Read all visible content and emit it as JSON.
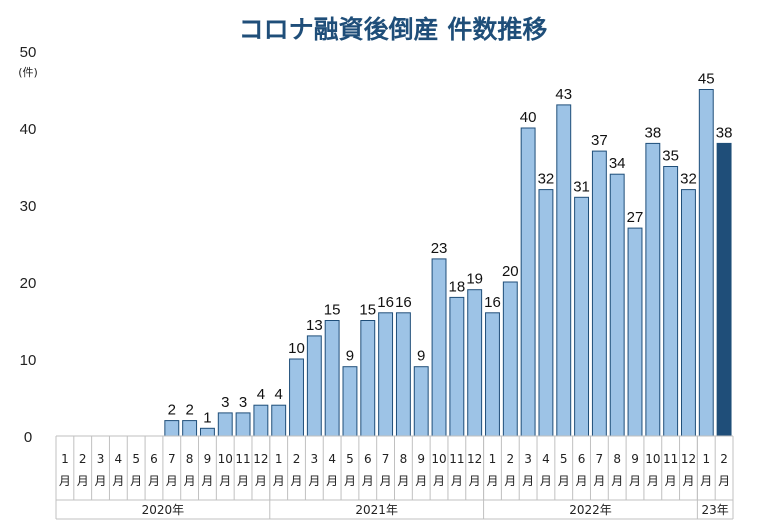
{
  "chart_data": {
    "type": "bar",
    "title": "コロナ融資後倒産 件数推移",
    "ylabel": "(件)",
    "ylim": [
      0,
      50
    ],
    "yticks": [
      0,
      10,
      20,
      30,
      40,
      50
    ],
    "grid": false,
    "legend": "none",
    "month_suffix": "月",
    "years": [
      {
        "label": "2020年",
        "months": 12
      },
      {
        "label": "2021年",
        "months": 12
      },
      {
        "label": "2022年",
        "months": 12
      },
      {
        "label": "23年",
        "months": 2
      }
    ],
    "categories": [
      "1",
      "2",
      "3",
      "4",
      "5",
      "6",
      "7",
      "8",
      "9",
      "10",
      "11",
      "12",
      "1",
      "2",
      "3",
      "4",
      "5",
      "6",
      "7",
      "8",
      "9",
      "10",
      "11",
      "12",
      "1",
      "2",
      "3",
      "4",
      "5",
      "6",
      "7",
      "8",
      "9",
      "10",
      "11",
      "12",
      "1",
      "2"
    ],
    "values": [
      null,
      null,
      null,
      null,
      null,
      null,
      2,
      2,
      1,
      3,
      3,
      4,
      4,
      10,
      13,
      15,
      9,
      15,
      16,
      16,
      9,
      23,
      18,
      19,
      16,
      20,
      40,
      32,
      43,
      31,
      37,
      34,
      27,
      38,
      35,
      32,
      45,
      38
    ],
    "bar_color": "#9dc3e6",
    "highlight_color": "#1f4e79",
    "highlight_index": 37,
    "border_color": "#1f4e79"
  }
}
